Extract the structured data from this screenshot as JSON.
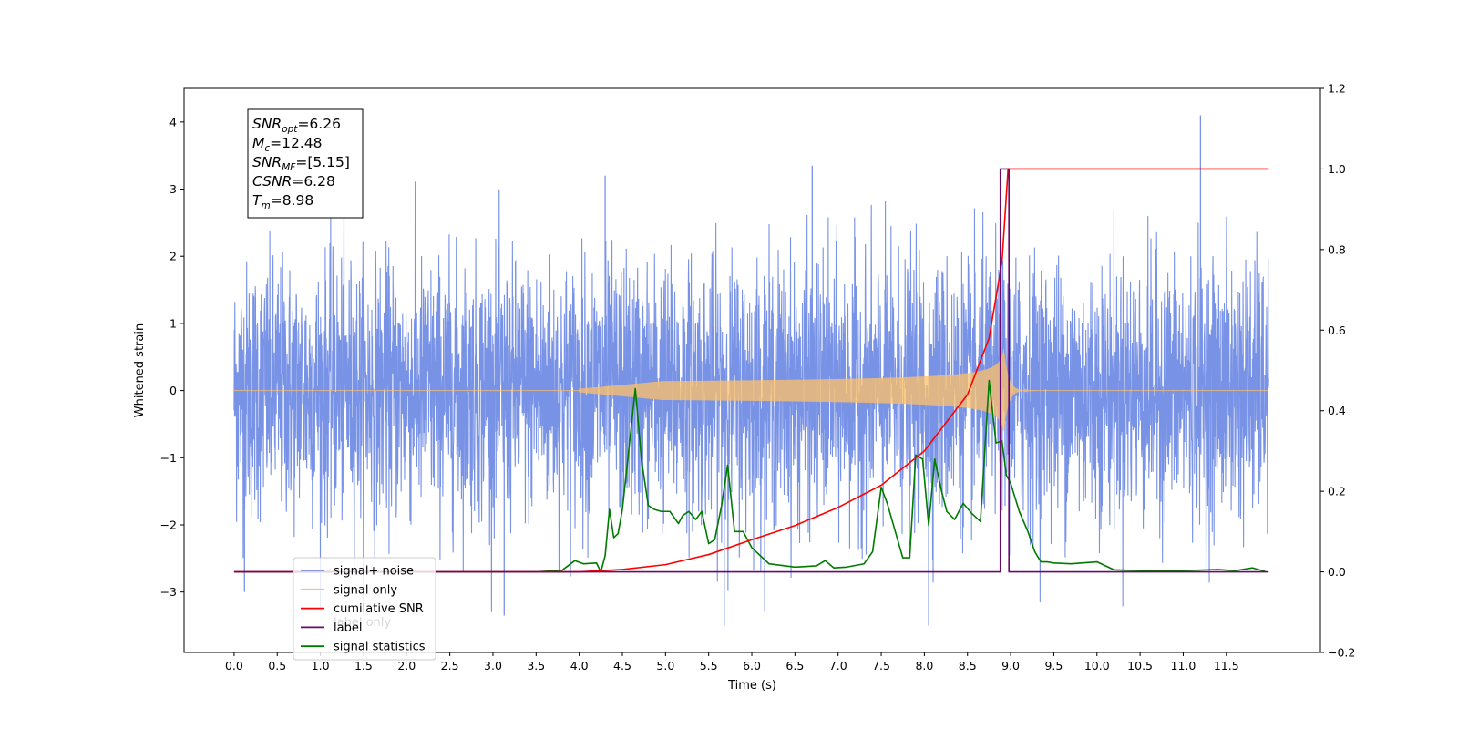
{
  "chart_data": {
    "type": "line",
    "xlabel": "Time (s)",
    "ylabel": "Whitened strain",
    "xlim": [
      -0.58,
      12.59
    ],
    "ylim_left": [
      -3.9,
      4.5
    ],
    "ylim_right": [
      -0.2,
      1.2
    ],
    "x_ticks": [
      0.0,
      0.5,
      1.0,
      1.5,
      2.0,
      2.5,
      3.0,
      3.5,
      4.0,
      4.5,
      5.0,
      5.5,
      6.0,
      6.5,
      7.0,
      7.5,
      8.0,
      8.5,
      9.0,
      9.5,
      10.0,
      10.5,
      11.0,
      11.5
    ],
    "x_tick_labels": [
      "0.0",
      "0.5",
      "1.0",
      "1.5",
      "2.0",
      "2.5",
      "3.0",
      "3.5",
      "4.0",
      "4.5",
      "5.0",
      "5.5",
      "6.0",
      "6.5",
      "7.0",
      "7.5",
      "8.0",
      "8.5",
      "9.0",
      "9.5",
      "10.0",
      "10.5",
      "11.0",
      "11.5"
    ],
    "y_ticks_left": [
      -3,
      -2,
      -1,
      0,
      1,
      2,
      3,
      4
    ],
    "y_tick_labels_left": [
      "−3",
      "−2",
      "−1",
      "0",
      "1",
      "2",
      "3",
      "4"
    ],
    "y_ticks_right": [
      -0.2,
      0.0,
      0.2,
      0.4,
      0.6,
      0.8,
      1.0,
      1.2
    ],
    "y_tick_labels_right": [
      "−0.2",
      "0.0",
      "0.2",
      "0.4",
      "0.6",
      "0.8",
      "1.0",
      "1.2"
    ],
    "grid": false,
    "legend_position": "lower-left",
    "legend": [
      {
        "label": "signal+ noise",
        "color": "#7892e6"
      },
      {
        "label": "signal only",
        "color": "#ffc067"
      },
      {
        "label": "cumilative SNR",
        "color": "#ff0000"
      },
      {
        "label": "label",
        "color": "#6a0a6a"
      },
      {
        "label": "signal statistics",
        "color": "#007a00"
      }
    ],
    "legend_hidden_behind": "label only",
    "annotation": {
      "lines": [
        {
          "sym": "SNR",
          "sub": "opt",
          "value": "=6.26"
        },
        {
          "sym": "M",
          "sub": "c",
          "value": "=12.48"
        },
        {
          "sym": "SNR",
          "sub": "MF",
          "value": "=[5.15]"
        },
        {
          "sym": "CSNR",
          "sub": "",
          "value": "=6.28"
        },
        {
          "sym": "T",
          "sub": "m",
          "value": "=8.98"
        }
      ]
    },
    "series": [
      {
        "name": "signal+ noise",
        "axis": "left",
        "color": "#7892e6",
        "x_range": [
          0.0,
          11.99
        ],
        "amplitude_std": 0.95,
        "notable_peaks": [
          {
            "x": 11.2,
            "y": 4.1
          },
          {
            "x": 4.3,
            "y": 3.2
          },
          {
            "x": 6.7,
            "y": 3.35
          },
          {
            "x": 8.05,
            "y": -3.5
          },
          {
            "x": 5.68,
            "y": -3.5
          },
          {
            "x": 3.13,
            "y": -3.35
          },
          {
            "x": 0.12,
            "y": -3.0
          }
        ]
      },
      {
        "name": "signal only",
        "axis": "left",
        "color": "#ffc067",
        "chirp": {
          "start_x": 4.0,
          "merger_x": 8.92,
          "ringdown_end_x": 9.3,
          "peak_amplitude": 0.62
        }
      },
      {
        "name": "cumilative SNR",
        "axis": "right",
        "color": "#ff0000",
        "x": [
          0.0,
          4.0,
          4.5,
          5.0,
          5.5,
          6.0,
          6.5,
          7.0,
          7.5,
          8.0,
          8.5,
          8.75,
          8.9,
          8.97,
          9.0,
          11.99
        ],
        "y": [
          0.0,
          0.0,
          0.006,
          0.018,
          0.043,
          0.08,
          0.115,
          0.16,
          0.215,
          0.3,
          0.44,
          0.58,
          0.77,
          1.0,
          1.0,
          1.0
        ]
      },
      {
        "name": "label",
        "axis": "right",
        "color": "#6a0a6a",
        "x": [
          0.0,
          8.88,
          8.88,
          8.98,
          8.98,
          11.99
        ],
        "y": [
          0.0,
          0.0,
          1.0,
          1.0,
          0.0,
          0.0
        ]
      },
      {
        "name": "signal statistics",
        "axis": "right",
        "color": "#007a00",
        "x": [
          0.0,
          3.5,
          3.8,
          3.95,
          4.05,
          4.2,
          4.25,
          4.3,
          4.35,
          4.4,
          4.45,
          4.5,
          4.57,
          4.65,
          4.72,
          4.8,
          4.87,
          4.95,
          5.05,
          5.15,
          5.2,
          5.27,
          5.35,
          5.42,
          5.5,
          5.57,
          5.65,
          5.72,
          5.8,
          5.9,
          6.0,
          6.2,
          6.5,
          6.75,
          6.85,
          6.95,
          7.1,
          7.3,
          7.4,
          7.5,
          7.57,
          7.65,
          7.75,
          7.83,
          7.9,
          7.98,
          8.05,
          8.12,
          8.2,
          8.26,
          8.35,
          8.45,
          8.55,
          8.65,
          8.75,
          8.83,
          8.9,
          8.95,
          9.0,
          9.1,
          9.2,
          9.28,
          9.35,
          9.42,
          9.5,
          9.7,
          10.0,
          10.2,
          10.5,
          11.0,
          11.4,
          11.6,
          11.8,
          11.95
        ],
        "y": [
          0.0,
          0.0,
          0.004,
          0.028,
          0.02,
          0.022,
          0.0,
          0.04,
          0.155,
          0.085,
          0.095,
          0.155,
          0.295,
          0.455,
          0.28,
          0.165,
          0.155,
          0.15,
          0.15,
          0.12,
          0.14,
          0.15,
          0.13,
          0.15,
          0.07,
          0.08,
          0.165,
          0.265,
          0.1,
          0.1,
          0.06,
          0.02,
          0.012,
          0.015,
          0.028,
          0.01,
          0.012,
          0.02,
          0.05,
          0.21,
          0.17,
          0.11,
          0.035,
          0.035,
          0.29,
          0.28,
          0.115,
          0.28,
          0.2,
          0.15,
          0.13,
          0.17,
          0.145,
          0.125,
          0.475,
          0.32,
          0.325,
          0.24,
          0.22,
          0.15,
          0.1,
          0.05,
          0.025,
          0.025,
          0.022,
          0.02,
          0.025,
          0.005,
          0.003,
          0.003,
          0.006,
          0.003,
          0.01,
          0.001
        ]
      }
    ]
  }
}
